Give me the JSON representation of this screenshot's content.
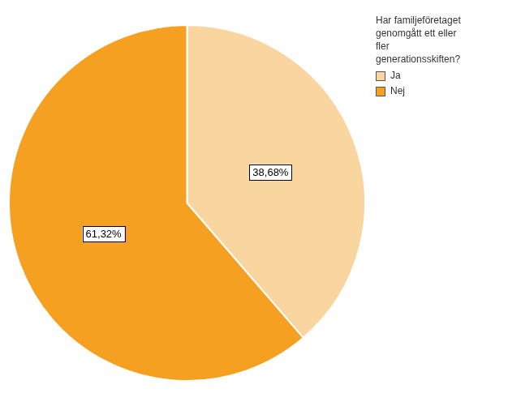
{
  "chart_data": {
    "type": "pie",
    "categories": [
      "Ja",
      "Nej"
    ],
    "values": [
      38.68,
      61.32
    ],
    "value_labels": [
      "38,68%",
      "61,32%"
    ],
    "colors": [
      "#F9D5A0",
      "#F5A020"
    ],
    "data_labels": true,
    "legend": "right",
    "legend_title": "Har familjeföretaget\ngenomgått ett eller\nfler\ngenerationsskiften?"
  }
}
